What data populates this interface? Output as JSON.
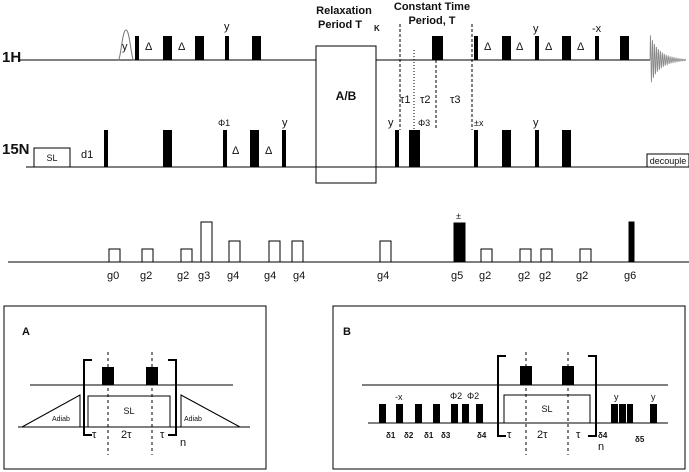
{
  "channels": {
    "h1": {
      "label": "1H"
    },
    "n15": {
      "label": "15N"
    }
  },
  "header": {
    "relaxation_title_1": "Relaxation",
    "relaxation_title_2": "Period T",
    "relaxation_sub": "K",
    "constant_time_1": "Constant Time",
    "constant_time_2": "Period, T"
  },
  "block": {
    "label": "A/B"
  },
  "h_phases": {
    "y1": "y",
    "y2": "y",
    "y3": "y",
    "minus_x": "-x"
  },
  "deltas": {
    "h": [
      "Δ",
      "Δ",
      "Δ",
      "Δ",
      "Δ",
      "Δ"
    ],
    "n": [
      "Δ",
      "Δ"
    ]
  },
  "taus": {
    "t1": "τ1",
    "t2": "τ2",
    "t3": "τ3"
  },
  "n_labels": {
    "sl": "SL",
    "d1": "d1",
    "phi1": "Φ1",
    "y_a": "y",
    "y_b": "y",
    "phi3": "Φ3",
    "pm_x": "±x",
    "y_c": "y",
    "decouple": "decouple"
  },
  "gradients": {
    "labels": [
      "g0",
      "g2",
      "g2",
      "g3",
      "g4",
      "g4",
      "g4",
      "g4",
      "g5",
      "g2",
      "g2",
      "g2",
      "g2",
      "g6"
    ],
    "pm": "±"
  },
  "panel_a": {
    "title": "A",
    "sl": "SL",
    "adiab_left": "Adiab",
    "adiab_right": "Adiab",
    "tau_left": "τ",
    "two_tau": "2τ",
    "tau_right": "τ",
    "n": "n"
  },
  "panel_b": {
    "title": "B",
    "minus_x": "-x",
    "phi2a": "Φ2",
    "phi2b": "Φ2",
    "deltas": [
      "δ1",
      "δ2",
      "δ1",
      "δ3",
      "δ4",
      "δ4",
      "δ5"
    ],
    "sl": "SL",
    "tau_left": "τ",
    "two_tau": "2τ",
    "tau_right": "τ",
    "n": "n",
    "y1": "y",
    "y2": "y"
  }
}
